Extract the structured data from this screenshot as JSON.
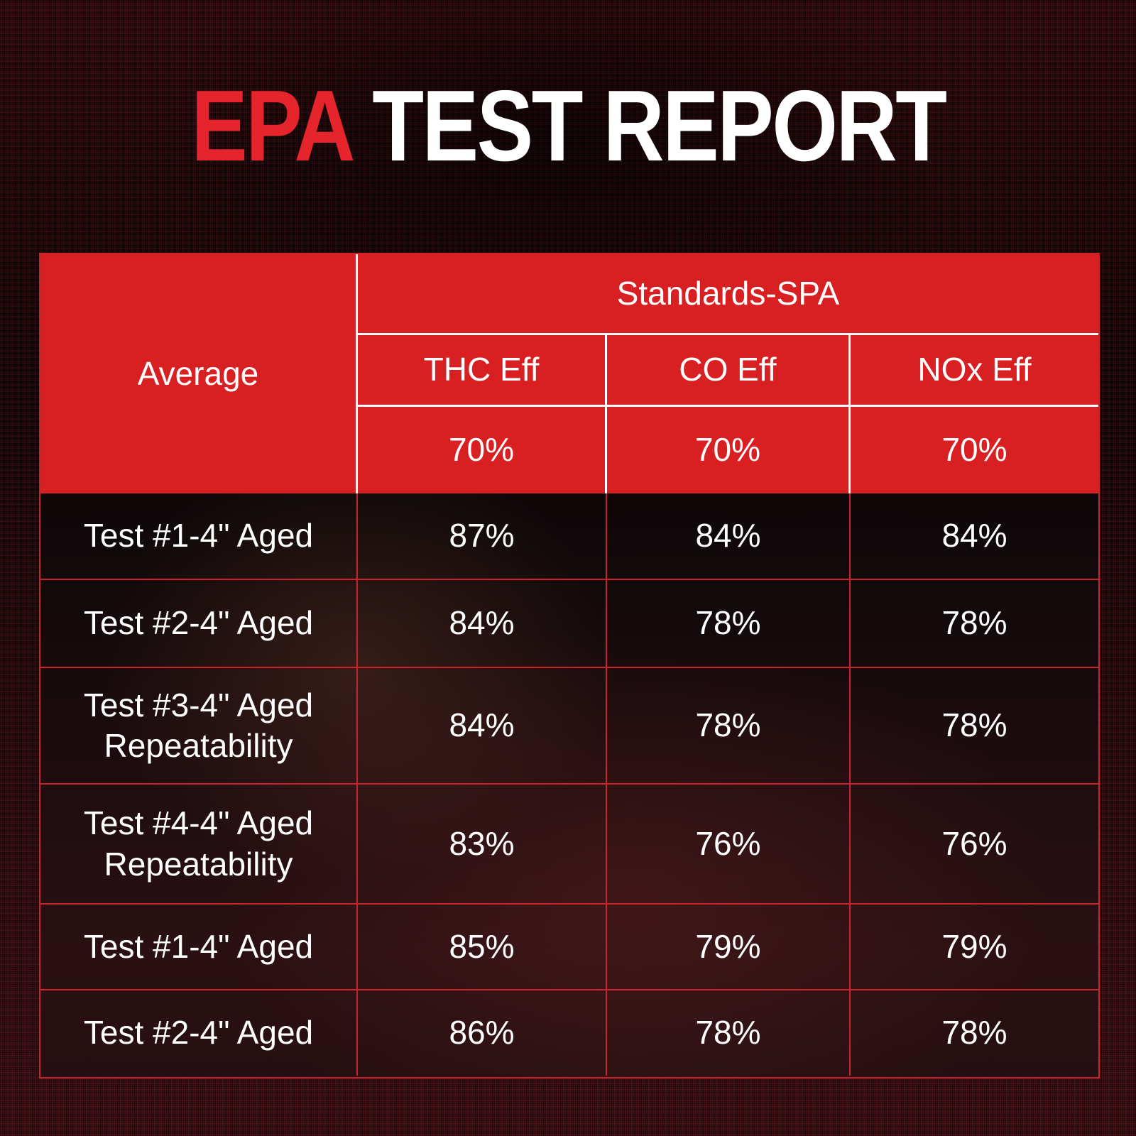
{
  "title": {
    "highlight": "EPA",
    "rest": " TEST REPORT"
  },
  "colors": {
    "header_red": "#d81f22",
    "accent_red": "#e6242b",
    "grid_line_red": "#c9242a",
    "text_white": "#ffffff"
  },
  "chart_data": {
    "type": "table",
    "title": "EPA TEST REPORT",
    "row_header": "Average",
    "group_header": "Standards-SPA",
    "columns": [
      "THC Eff",
      "CO Eff",
      "NOx Eff"
    ],
    "standards": [
      "70%",
      "70%",
      "70%"
    ],
    "rows": [
      {
        "label": "Test #1-4\" Aged",
        "values": [
          "87%",
          "84%",
          "84%"
        ]
      },
      {
        "label": "Test #2-4\" Aged",
        "values": [
          "84%",
          "78%",
          "78%"
        ]
      },
      {
        "label": "Test #3-4\" Aged Repeatability",
        "values": [
          "84%",
          "78%",
          "78%"
        ]
      },
      {
        "label": "Test #4-4\" Aged Repeatability",
        "values": [
          "83%",
          "76%",
          "76%"
        ]
      },
      {
        "label": "Test #1-4\" Aged",
        "values": [
          "85%",
          "79%",
          "79%"
        ]
      },
      {
        "label": "Test #2-4\" Aged",
        "values": [
          "86%",
          "78%",
          "78%"
        ]
      }
    ]
  }
}
